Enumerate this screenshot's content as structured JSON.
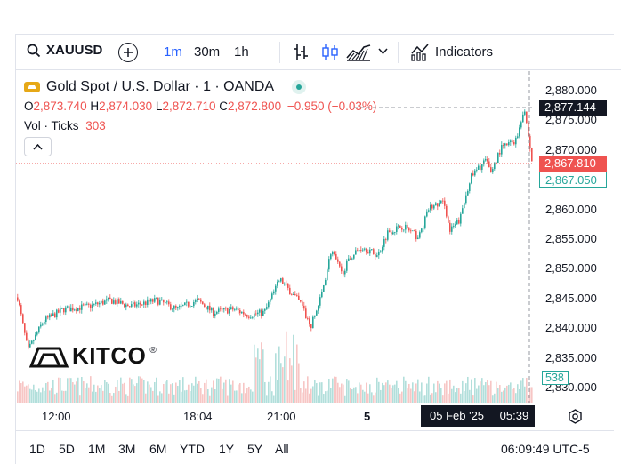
{
  "toolbar": {
    "symbol": "XAUUSD",
    "intervals": [
      "1m",
      "30m",
      "1h"
    ],
    "indicators_label": "Indicators"
  },
  "legend": {
    "title": "Gold Spot / U.S. Dollar · 1 · OANDA",
    "o_label": "O",
    "o_value": "2,873.740",
    "h_label": "H",
    "h_value": "2,874.030",
    "l_label": "L",
    "l_value": "2,872.710",
    "c_label": "C",
    "c_value": "2,872.800",
    "change": "−0.950 (−0.03%)",
    "vol_label": "Vol · Ticks",
    "vol_value": "303"
  },
  "price_axis": {
    "ticks": [
      "2,880.000",
      "2,875.000",
      "2,870.000",
      "2,865.000",
      "2,860.000",
      "2,855.000",
      "2,850.000",
      "2,845.000",
      "2,840.000",
      "2,835.000",
      "2,830.000"
    ],
    "crosshair_price": "2,877.144",
    "last_price": "2,867.810",
    "bid_price": "2,867.050",
    "volume_tag": "538"
  },
  "time_axis": {
    "labels": [
      "12:00",
      "18:04",
      "21:00",
      "5"
    ],
    "crosshair_date": "05 Feb '25",
    "crosshair_time": "05:39"
  },
  "ranges": [
    "1D",
    "5D",
    "1M",
    "3M",
    "6M",
    "YTD",
    "1Y",
    "5Y",
    "All"
  ],
  "clock": "06:09:49 UTC-5",
  "watermark": "KITCO",
  "colors": {
    "up": "#26a69a",
    "down": "#ef5350",
    "accent": "#2962ff",
    "vol_up": "#b2dfdb",
    "vol_down": "#f7c6c5"
  },
  "chart_data": {
    "type": "candlestick",
    "title": "Gold Spot / U.S. Dollar · 1 · OANDA",
    "ylim": [
      2830,
      2880
    ],
    "path": [
      [
        0,
        2845
      ],
      [
        0.02,
        2836
      ],
      [
        0.05,
        2841
      ],
      [
        0.09,
        2843
      ],
      [
        0.14,
        2843.5
      ],
      [
        0.18,
        2844.5
      ],
      [
        0.22,
        2843.5
      ],
      [
        0.27,
        2844.5
      ],
      [
        0.31,
        2843
      ],
      [
        0.35,
        2844.5
      ],
      [
        0.38,
        2842.5
      ],
      [
        0.42,
        2843
      ],
      [
        0.45,
        2842
      ],
      [
        0.48,
        2842.5
      ],
      [
        0.51,
        2848
      ],
      [
        0.52,
        2847
      ],
      [
        0.55,
        2844
      ],
      [
        0.57,
        2840
      ],
      [
        0.59,
        2845
      ],
      [
        0.61,
        2853
      ],
      [
        0.63,
        2849
      ],
      [
        0.65,
        2852
      ],
      [
        0.67,
        2853.5
      ],
      [
        0.7,
        2852
      ],
      [
        0.72,
        2856
      ],
      [
        0.75,
        2857
      ],
      [
        0.78,
        2855
      ],
      [
        0.8,
        2860
      ],
      [
        0.83,
        2861
      ],
      [
        0.84,
        2856
      ],
      [
        0.86,
        2858
      ],
      [
        0.88,
        2865
      ],
      [
        0.91,
        2868
      ],
      [
        0.92,
        2866
      ],
      [
        0.94,
        2870
      ],
      [
        0.97,
        2871.5
      ],
      [
        0.985,
        2877
      ],
      [
        1.0,
        2868
      ]
    ]
  }
}
